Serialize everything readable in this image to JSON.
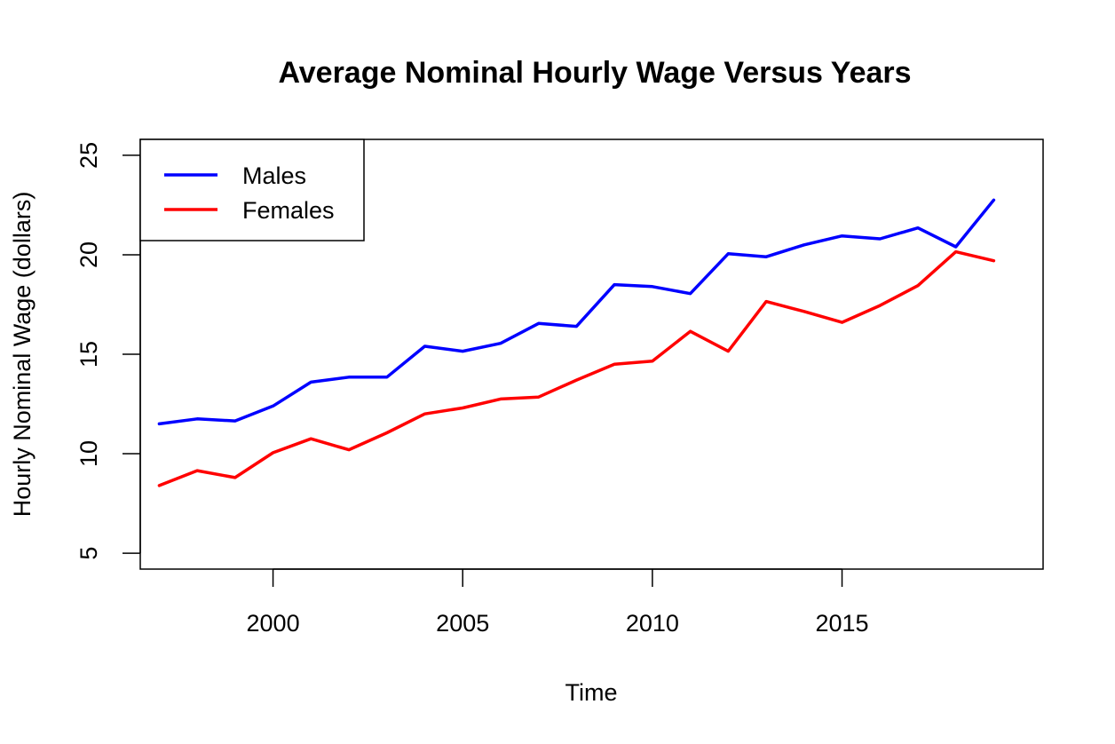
{
  "chart_data": {
    "type": "line",
    "title": "Average Nominal Hourly Wage Versus Years",
    "xlabel": "Time",
    "ylabel": "Hourly Nominal Wage (dollars)",
    "xlim": [
      1996.5,
      2020.3
    ],
    "ylim": [
      4.2,
      25.8
    ],
    "x_ticks": [
      2000,
      2005,
      2010,
      2015
    ],
    "y_ticks": [
      5,
      10,
      15,
      20,
      25
    ],
    "grid": false,
    "legend_position": "top-left",
    "x": [
      1997,
      1998,
      1999,
      2000,
      2001,
      2002,
      2003,
      2004,
      2005,
      2006,
      2007,
      2008,
      2009,
      2010,
      2011,
      2012,
      2013,
      2014,
      2015,
      2016,
      2017,
      2018,
      2019
    ],
    "series": [
      {
        "name": "Males",
        "color": "#0000ff",
        "values": [
          11.5,
          11.75,
          11.65,
          12.4,
          13.6,
          13.85,
          13.85,
          15.4,
          15.15,
          15.55,
          16.55,
          16.4,
          18.5,
          18.4,
          18.05,
          20.05,
          19.9,
          20.5,
          20.95,
          20.8,
          21.35,
          20.4,
          22.75
        ]
      },
      {
        "name": "Females",
        "color": "#ff0000",
        "values": [
          8.4,
          9.15,
          8.8,
          10.05,
          10.75,
          10.2,
          11.05,
          12.0,
          12.3,
          12.75,
          12.85,
          13.7,
          14.5,
          14.65,
          16.15,
          15.15,
          17.65,
          17.15,
          16.6,
          17.45,
          18.45,
          20.15,
          19.7
        ]
      }
    ]
  }
}
